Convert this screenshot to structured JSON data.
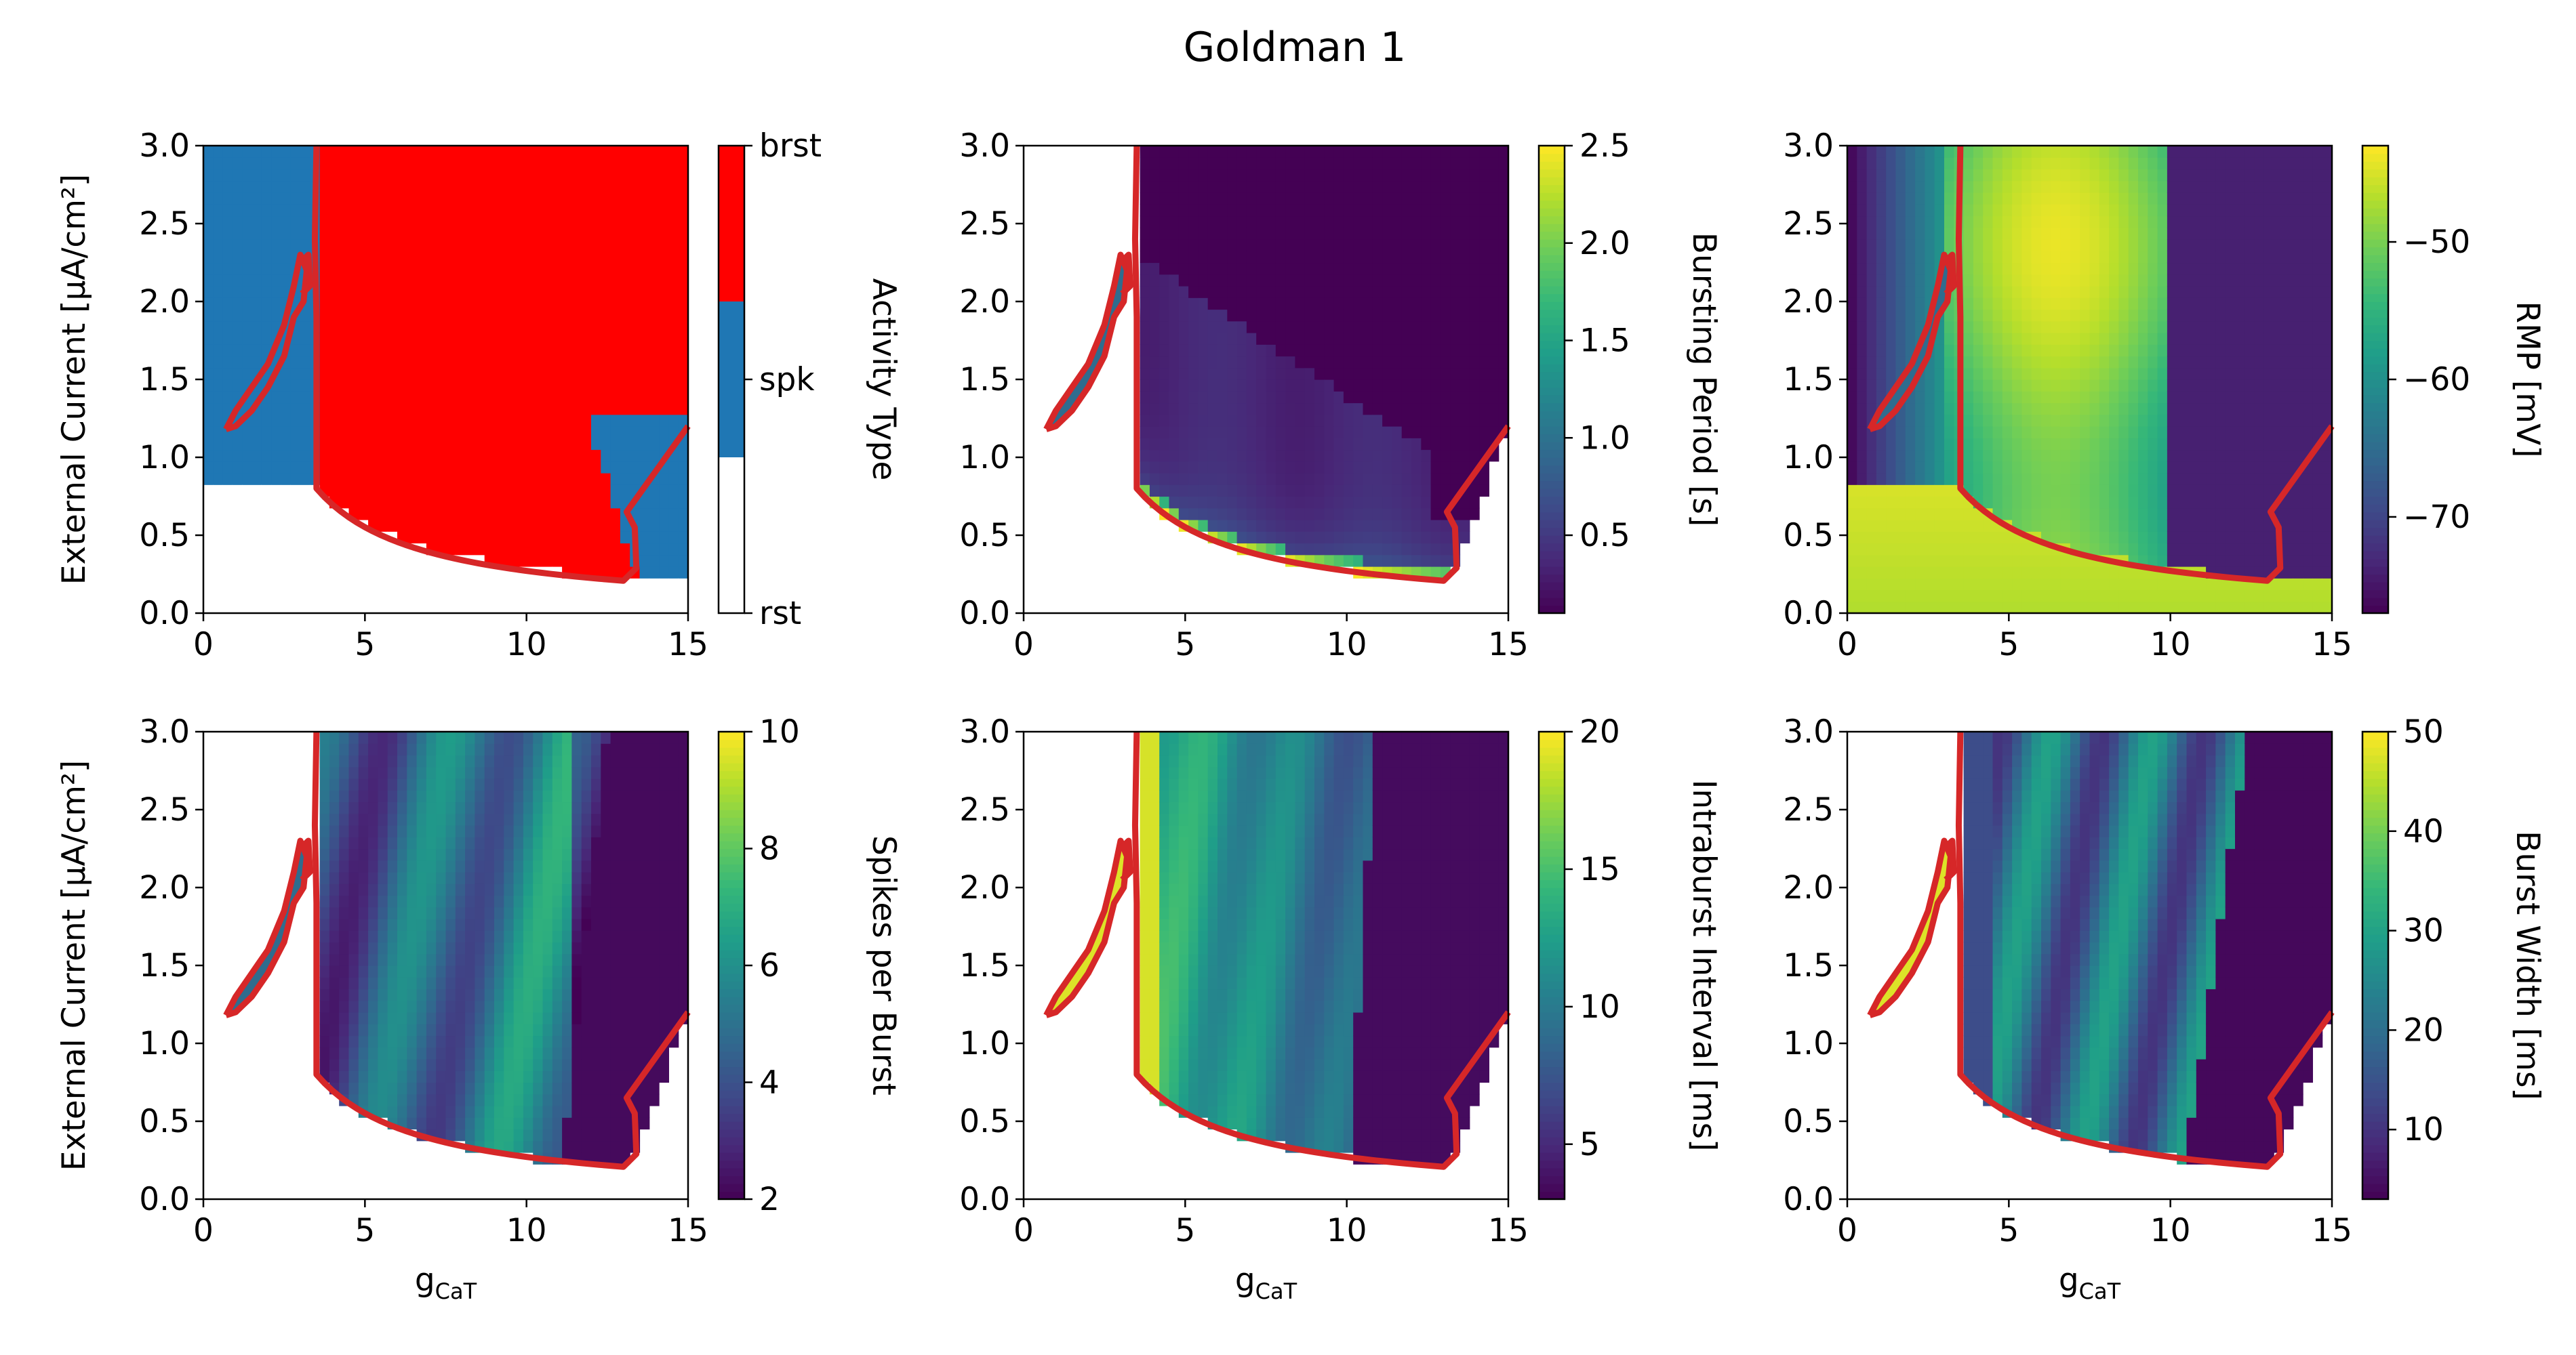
{
  "title": "Goldman 1",
  "chart_data": [
    {
      "type": "heatmap",
      "name": "activity-type",
      "ylabel": "External Current [μA/cm²]",
      "xlabel": "",
      "xlim": [
        0,
        15
      ],
      "ylim": [
        0,
        3
      ],
      "xticks": [
        "0",
        "5",
        "10",
        "15"
      ],
      "yticks": [
        "0.0",
        "0.5",
        "1.0",
        "1.5",
        "2.0",
        "2.5",
        "3.0"
      ],
      "colorbar": {
        "label": "Activity Type",
        "colormap": "categorical",
        "ticks": [
          "rst",
          "spk",
          "brst"
        ],
        "categories": [
          {
            "name": "rst",
            "color": "#ffffff"
          },
          {
            "name": "spk",
            "color": "#1f77b4"
          },
          {
            "name": "brst",
            "color": "#ff0000"
          }
        ]
      },
      "boundary_color": "#d62728"
    },
    {
      "type": "heatmap",
      "name": "bursting-period",
      "ylabel": "",
      "xlabel": "",
      "xlim": [
        0,
        15
      ],
      "ylim": [
        0,
        3
      ],
      "xticks": [
        "0",
        "5",
        "10",
        "15"
      ],
      "yticks": [
        "0.0",
        "0.5",
        "1.0",
        "1.5",
        "2.0",
        "2.5",
        "3.0"
      ],
      "colorbar": {
        "label": "Bursting Period [s]",
        "colormap": "viridis",
        "range": [
          0.1,
          2.5
        ],
        "ticks": [
          {
            "v": 0.5,
            "t": "0.5"
          },
          {
            "v": 1.0,
            "t": "1.0"
          },
          {
            "v": 1.5,
            "t": "1.5"
          },
          {
            "v": 2.0,
            "t": "2.0"
          },
          {
            "v": 2.5,
            "t": "2.5"
          }
        ]
      },
      "boundary_color": "#d62728"
    },
    {
      "type": "heatmap",
      "name": "rmp",
      "ylabel": "",
      "xlabel": "",
      "xlim": [
        0,
        15
      ],
      "ylim": [
        0,
        3
      ],
      "xticks": [
        "0",
        "5",
        "10",
        "15"
      ],
      "yticks": [
        "0.0",
        "0.5",
        "1.0",
        "1.5",
        "2.0",
        "2.5",
        "3.0"
      ],
      "colorbar": {
        "label": "RMP [mV]",
        "colormap": "viridis",
        "range": [
          -77,
          -43
        ],
        "ticks": [
          {
            "v": -50,
            "t": "−50"
          },
          {
            "v": -60,
            "t": "−60"
          },
          {
            "v": -70,
            "t": "−70"
          }
        ]
      },
      "boundary_color": "#d62728"
    },
    {
      "type": "heatmap",
      "name": "spikes-per-burst",
      "ylabel": "External Current [μA/cm²]",
      "xlabel": "g_CaT",
      "xlim": [
        0,
        15
      ],
      "ylim": [
        0,
        3
      ],
      "xticks": [
        "0",
        "5",
        "10",
        "15"
      ],
      "yticks": [
        "0.0",
        "0.5",
        "1.0",
        "1.5",
        "2.0",
        "2.5",
        "3.0"
      ],
      "colorbar": {
        "label": "Spikes per Burst",
        "colormap": "viridis",
        "range": [
          2,
          10
        ],
        "ticks": [
          {
            "v": 2,
            "t": "2"
          },
          {
            "v": 4,
            "t": "4"
          },
          {
            "v": 6,
            "t": "6"
          },
          {
            "v": 8,
            "t": "8"
          },
          {
            "v": 10,
            "t": "10"
          }
        ]
      },
      "boundary_color": "#d62728"
    },
    {
      "type": "heatmap",
      "name": "intraburst-interval",
      "ylabel": "",
      "xlabel": "g_CaT",
      "xlim": [
        0,
        15
      ],
      "ylim": [
        0,
        3
      ],
      "xticks": [
        "0",
        "5",
        "10",
        "15"
      ],
      "yticks": [
        "0.0",
        "0.5",
        "1.0",
        "1.5",
        "2.0",
        "2.5",
        "3.0"
      ],
      "colorbar": {
        "label": "Intraburst Interval [ms]",
        "colormap": "viridis",
        "range": [
          3,
          20
        ],
        "ticks": [
          {
            "v": 5,
            "t": "5"
          },
          {
            "v": 10,
            "t": "10"
          },
          {
            "v": 15,
            "t": "15"
          },
          {
            "v": 20,
            "t": "20"
          }
        ]
      },
      "boundary_color": "#d62728"
    },
    {
      "type": "heatmap",
      "name": "burst-width",
      "ylabel": "",
      "xlabel": "g_CaT",
      "xlim": [
        0,
        15
      ],
      "ylim": [
        0,
        3
      ],
      "xticks": [
        "0",
        "5",
        "10",
        "15"
      ],
      "yticks": [
        "0.0",
        "0.5",
        "1.0",
        "1.5",
        "2.0",
        "2.5",
        "3.0"
      ],
      "colorbar": {
        "label": "Burst Width [ms]",
        "colormap": "viridis",
        "range": [
          3,
          50
        ],
        "ticks": [
          {
            "v": 10,
            "t": "10"
          },
          {
            "v": 20,
            "t": "20"
          },
          {
            "v": 30,
            "t": "30"
          },
          {
            "v": 40,
            "t": "40"
          },
          {
            "v": 50,
            "t": "50"
          }
        ]
      },
      "boundary_color": "#d62728"
    }
  ]
}
